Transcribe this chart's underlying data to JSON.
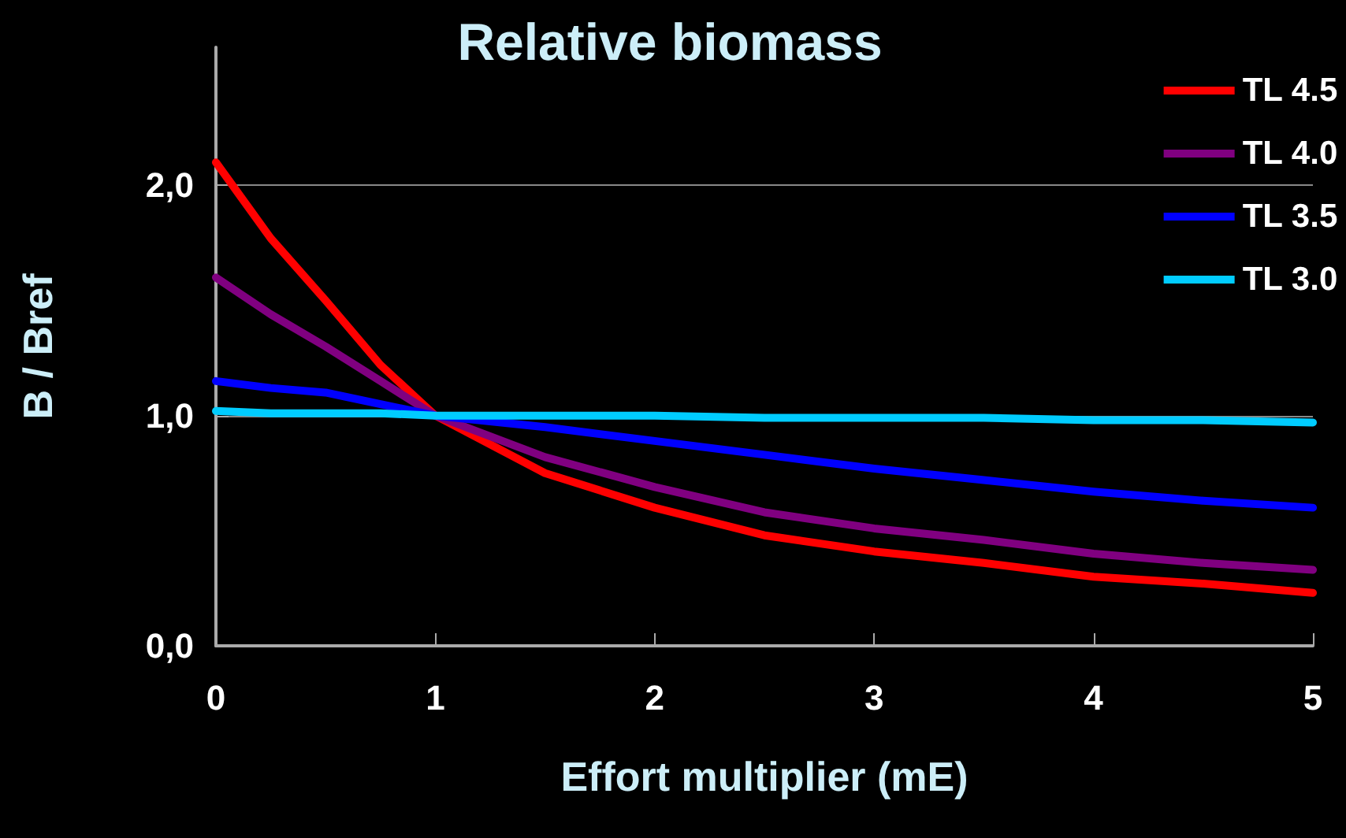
{
  "chart_data": {
    "type": "line",
    "title": "Relative biomass",
    "xlabel": "Effort multiplier (mE)",
    "ylabel": "B / Bref",
    "x": [
      0,
      0.25,
      0.5,
      0.75,
      1,
      1.5,
      2,
      2.5,
      3,
      3.5,
      4,
      4.5,
      5
    ],
    "series": [
      {
        "name": "TL 4.5",
        "color": "#ff0000",
        "values": [
          2.1,
          1.77,
          1.5,
          1.22,
          1.0,
          0.75,
          0.6,
          0.48,
          0.41,
          0.36,
          0.3,
          0.27,
          0.23
        ]
      },
      {
        "name": "TL 4.0",
        "color": "#800080",
        "values": [
          1.6,
          1.44,
          1.3,
          1.15,
          1.0,
          0.82,
          0.69,
          0.58,
          0.51,
          0.46,
          0.4,
          0.36,
          0.33
        ]
      },
      {
        "name": "TL 3.5",
        "color": "#0000ff",
        "values": [
          1.15,
          1.12,
          1.1,
          1.05,
          1.0,
          0.95,
          0.89,
          0.83,
          0.77,
          0.72,
          0.67,
          0.63,
          0.6
        ]
      },
      {
        "name": "TL 3.0",
        "color": "#00ccff",
        "values": [
          1.02,
          1.01,
          1.01,
          1.01,
          1.0,
          1.0,
          1.0,
          0.99,
          0.99,
          0.99,
          0.98,
          0.98,
          0.97
        ]
      }
    ],
    "xlim": [
      0,
      5
    ],
    "xticks": [
      0,
      1,
      2,
      3,
      4,
      5
    ],
    "ylim": [
      0,
      2.6
    ],
    "yticks": [
      {
        "value": 0,
        "label": "0,0"
      },
      {
        "value": 1,
        "label": "1,0"
      },
      {
        "value": 2,
        "label": "2,0"
      }
    ],
    "grid": "y",
    "legend": "top right",
    "marker": "none",
    "line_style": "solid"
  }
}
